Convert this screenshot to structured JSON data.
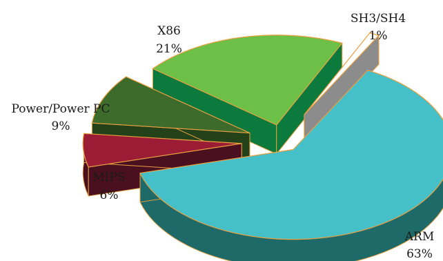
{
  "chart_data": {
    "type": "pie",
    "title": "",
    "exploded": true,
    "three_d": true,
    "slices": [
      {
        "label": "ARM",
        "value": 63,
        "value_label": "63%",
        "color": "#46c0c8",
        "side_color": "#1e6a68"
      },
      {
        "label": "MIPS",
        "value": 6,
        "value_label": "6%",
        "color": "#9a1d35",
        "side_color": "#4a1020"
      },
      {
        "label": "Power/Power PC",
        "value": 9,
        "value_label": "9%",
        "color": "#3c6b2c",
        "side_color": "#24421a"
      },
      {
        "label": "X86",
        "value": 21,
        "value_label": "21%",
        "color": "#6cc048",
        "side_color": "#0b7a3c"
      },
      {
        "label": "SH3/SH4",
        "value": 1,
        "value_label": "1%",
        "color": "#ffffff",
        "side_color": "#8c8c8c"
      }
    ]
  }
}
